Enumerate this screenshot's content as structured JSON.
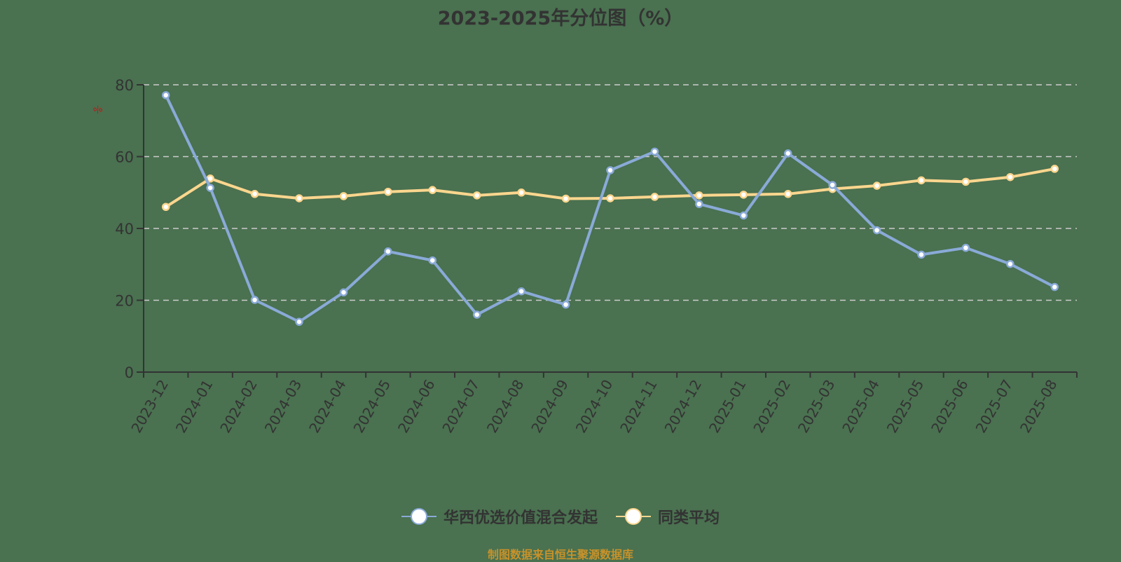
{
  "title": "2023-2025年分位图（%）",
  "y_unit_label": "%",
  "footer": "制图数据来自恒生聚源数据库",
  "colors": {
    "background": "#4a7150",
    "series_fund": "#8aaad8",
    "series_avg": "#fcd68e",
    "gridline": "#cccccc",
    "axis": "#333333",
    "footer": "#c8922a",
    "unit_label": "#cc1111"
  },
  "legend": [
    {
      "name": "华西优选价值混合发起",
      "icon": "circle-marker-icon",
      "color": "#8aaad8"
    },
    {
      "name": "同类平均",
      "icon": "circle-marker-icon",
      "color": "#fcd68e"
    }
  ],
  "chart_data": {
    "type": "line",
    "title": "2023-2025年分位图（%）",
    "xlabel": "",
    "ylabel": "%",
    "ylim": [
      0,
      80
    ],
    "yticks": [
      0,
      20,
      40,
      60,
      80
    ],
    "grid": "horizontal dashed",
    "legend_position": "bottom",
    "categories": [
      "2023-12",
      "2024-01",
      "2024-02",
      "2024-03",
      "2024-04",
      "2024-05",
      "2024-06",
      "2024-07",
      "2024-08",
      "2024-09",
      "2024-10",
      "2024-11",
      "2024-12",
      "2025-01",
      "2025-02",
      "2025-03",
      "2025-04",
      "2025-05",
      "2025-06",
      "2025-07",
      "2025-08"
    ],
    "series": [
      {
        "name": "华西优选价值混合发起",
        "color": "#8aaad8",
        "values": [
          77.1,
          51.3,
          20.1,
          14.0,
          22.2,
          33.6,
          31.1,
          16.0,
          22.5,
          18.8,
          56.2,
          61.4,
          46.8,
          43.6,
          60.9,
          52.1,
          39.5,
          32.7,
          34.6,
          30.1,
          23.7
        ]
      },
      {
        "name": "同类平均",
        "color": "#fcd68e",
        "values": [
          46.0,
          53.9,
          49.6,
          48.4,
          49.0,
          50.2,
          50.7,
          49.2,
          50.0,
          48.3,
          48.4,
          48.8,
          49.2,
          49.4,
          49.6,
          51.0,
          51.9,
          53.4,
          53.0,
          54.3,
          56.6
        ]
      }
    ]
  }
}
